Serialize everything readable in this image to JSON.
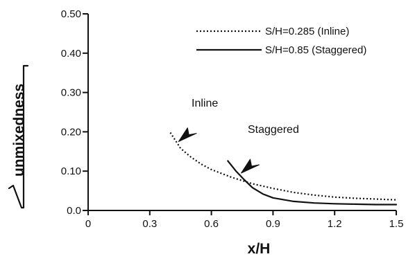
{
  "chart_data": {
    "type": "line",
    "xlabel": "x/H",
    "ylabel": "unmixedness",
    "ylabel_prefix": "√",
    "xlim": [
      0,
      1.5
    ],
    "ylim": [
      0,
      0.5
    ],
    "x_ticks": [
      {
        "value": 0,
        "label": "0"
      },
      {
        "value": 0.3,
        "label": "0.3"
      },
      {
        "value": 0.6,
        "label": "0.6"
      },
      {
        "value": 0.9,
        "label": "0.9"
      },
      {
        "value": 1.2,
        "label": "1.2"
      },
      {
        "value": 1.5,
        "label": "1.5"
      }
    ],
    "y_ticks": [
      {
        "value": 0,
        "label": "0.0"
      },
      {
        "value": 0.1,
        "label": "0.10"
      },
      {
        "value": 0.2,
        "label": "0.20"
      },
      {
        "value": 0.3,
        "label": "0.30"
      },
      {
        "value": 0.4,
        "label": "0.40"
      },
      {
        "value": 0.5,
        "label": "0.50"
      }
    ],
    "grid": false,
    "legend_position": "top-right",
    "series": [
      {
        "name": "S/H=0.285 (Inline)",
        "style": "dotted",
        "color": "#111111",
        "x": [
          0.4,
          0.45,
          0.5,
          0.55,
          0.6,
          0.7,
          0.8,
          0.9,
          1.0,
          1.1,
          1.2,
          1.3,
          1.4,
          1.5
        ],
        "y": [
          0.198,
          0.158,
          0.136,
          0.118,
          0.104,
          0.084,
          0.068,
          0.056,
          0.046,
          0.039,
          0.034,
          0.031,
          0.029,
          0.027
        ]
      },
      {
        "name": "S/H=0.85 (Staggered)",
        "style": "solid",
        "color": "#111111",
        "x": [
          0.68,
          0.72,
          0.76,
          0.8,
          0.85,
          0.9,
          1.0,
          1.1,
          1.2,
          1.3,
          1.4,
          1.5
        ],
        "y": [
          0.126,
          0.1,
          0.078,
          0.058,
          0.042,
          0.032,
          0.023,
          0.019,
          0.017,
          0.016,
          0.015,
          0.015
        ]
      }
    ],
    "annotations": [
      {
        "text": "Inline",
        "target_series": 0,
        "arrow_tip": [
          0.44,
          0.175
        ]
      },
      {
        "text": "Staggered",
        "target_series": 1,
        "arrow_tip": [
          0.745,
          0.095
        ]
      }
    ]
  }
}
